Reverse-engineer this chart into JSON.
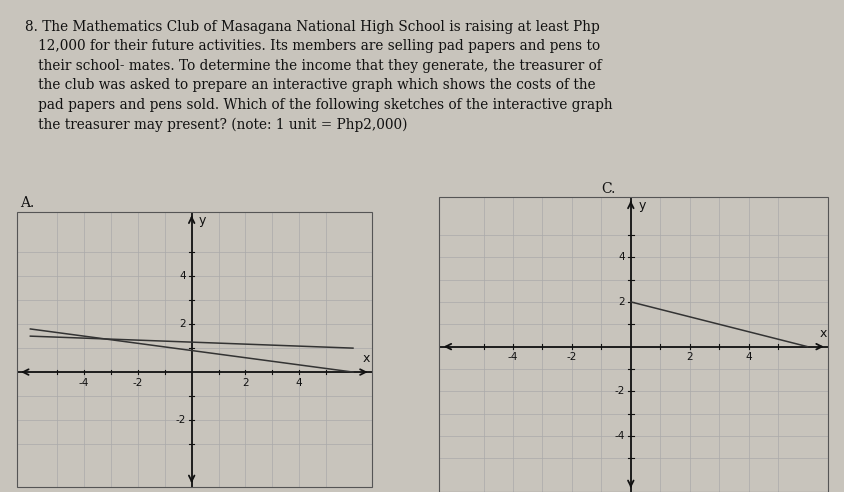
{
  "page_bg": "#c8c4bc",
  "text_bg": "#c8c4bc",
  "graph_bg": "#ffffff",
  "text_block_line1": "8. The Mathematics Club of Masagana National High School is raising at least Php",
  "text_block_line2": "   12,000 for their future activities. Its members are selling pad papers and pens to",
  "text_block_line3": "   their school- mates. To determine the income that they generate, the treasurer of",
  "text_block_line4": "   the club was asked to prepare an interactive graph which shows the costs of the",
  "text_block_line5": "   pad papers and pens sold. Which of the following sketches of the interactive graph",
  "text_block_line6": "   the treasurer may present? (note: 1 unit = Php2,000)",
  "text_fontsize": 9.8,
  "graph_A_label": "A.",
  "graph_C_label": "C.",
  "grid_color": "#aaaaaa",
  "axis_color": "#111111",
  "line_color": "#333333",
  "graph_A_line1": [
    [
      -6,
      1.8
    ],
    [
      6,
      0.0
    ]
  ],
  "graph_A_line2": [
    [
      -6,
      1.5
    ],
    [
      6,
      1.0
    ]
  ],
  "graph_C_line": [
    [
      0,
      2
    ],
    [
      6,
      0
    ]
  ],
  "tick_fontsize": 7.5,
  "axis_label_fontsize": 9,
  "graph_label_fontsize": 10
}
